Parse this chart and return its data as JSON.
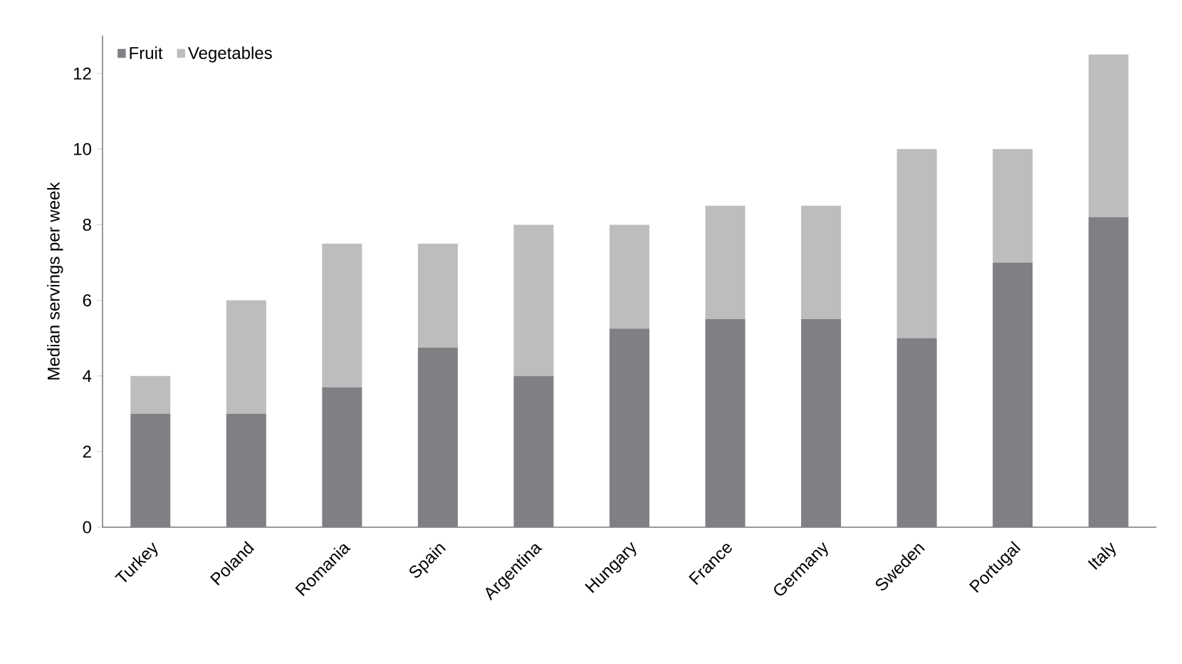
{
  "chart_data": {
    "type": "bar",
    "stacked": true,
    "ylabel": "Median servings per week",
    "categories": [
      "Turkey",
      "Poland",
      "Romania",
      "Spain",
      "Argentina",
      "Hungary",
      "France",
      "Germany",
      "Sweden",
      "Portugal",
      "Italy"
    ],
    "series": [
      {
        "name": "Fruit",
        "color": "#7f7f84",
        "values": [
          3,
          3,
          3.7,
          4.75,
          4,
          5.25,
          5.5,
          5.5,
          5,
          7,
          8.2
        ]
      },
      {
        "name": "Vegetables",
        "color": "#bdbdbd",
        "values": [
          1,
          3,
          3.8,
          2.75,
          4,
          2.75,
          3,
          3,
          5,
          3,
          4.3
        ]
      }
    ],
    "ylim": [
      0,
      13
    ],
    "yticks": [
      0,
      2,
      4,
      6,
      8,
      10,
      12
    ],
    "grid": false,
    "legend": "top left"
  }
}
